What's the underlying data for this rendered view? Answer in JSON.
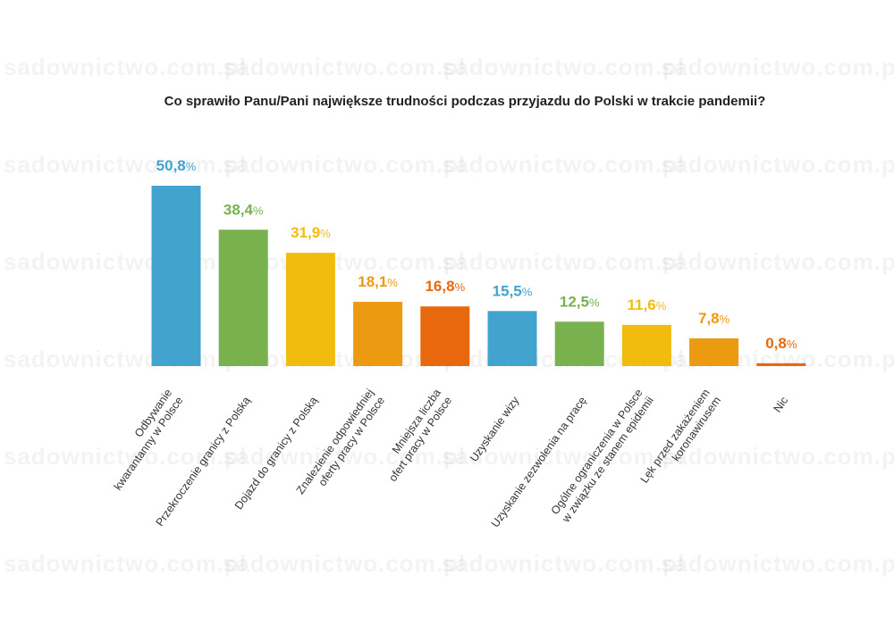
{
  "watermark": "sadownictwo.com.pl",
  "chart_data": {
    "type": "bar",
    "title": "Co sprawiło Panu/Pani największe trudności podczas przyjazdu do Polski w trakcie pandemii?",
    "xlabel": "",
    "ylabel": "",
    "ylim": [
      0,
      55
    ],
    "grid": false,
    "legend": "none",
    "categories": [
      [
        "Odbywanie",
        "kwarantanny w Polsce"
      ],
      [
        "Przekroczenie granicy z Polską"
      ],
      [
        "Dojazd do granicy z Polską"
      ],
      [
        "Znalezienie odpowiedniej",
        "oferty pracy w Polsce"
      ],
      [
        "Mniejsza liczba",
        "ofert pracy w Polsce"
      ],
      [
        "Uzyskanie wizy"
      ],
      [
        "Uzyskanie zezwolenia na pracę"
      ],
      [
        "Ogólne ograniczenia w Polsce",
        "w związku ze stanem epidemii"
      ],
      [
        "Lęk przed zakażeniem",
        "koronawirusem"
      ],
      [
        "Nic"
      ]
    ],
    "values": [
      50.8,
      38.4,
      31.9,
      18.1,
      16.8,
      15.5,
      12.5,
      11.6,
      7.8,
      0.8
    ],
    "value_labels": [
      "50,8",
      "38,4",
      "31,9",
      "18,1",
      "16,8",
      "15,5",
      "12,5",
      "11,6",
      "7,8",
      "0,8"
    ],
    "unit": "%",
    "colors": [
      "#43a3cf",
      "#78b14d",
      "#f2bc0e",
      "#ec9a12",
      "#e8680e",
      "#43a3cf",
      "#78b14d",
      "#f2bc0e",
      "#ec9a12",
      "#e8680e"
    ]
  }
}
